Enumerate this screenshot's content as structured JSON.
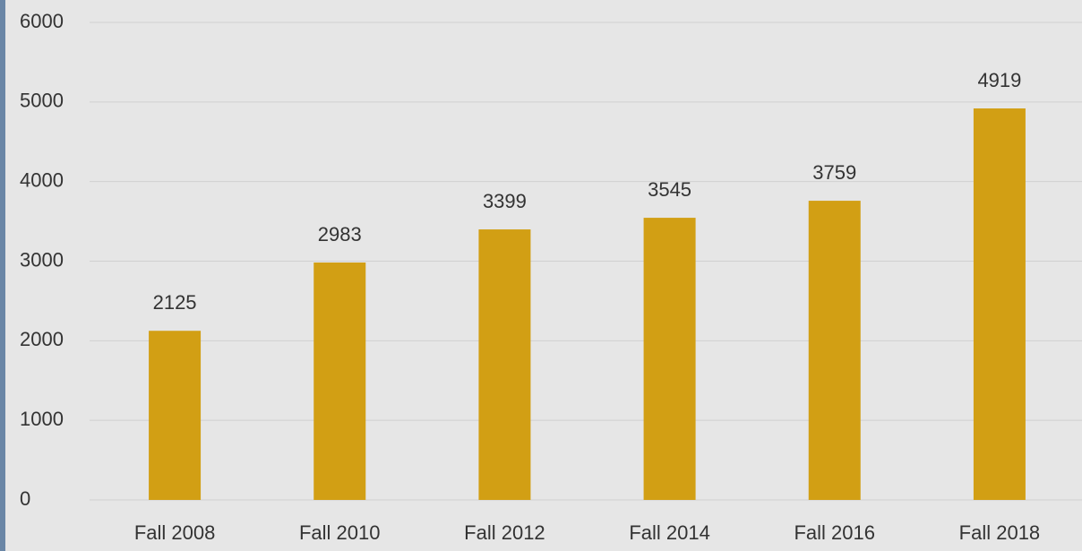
{
  "chart_data": {
    "type": "bar",
    "categories": [
      "Fall 2008",
      "Fall 2010",
      "Fall 2012",
      "Fall 2014",
      "Fall 2016",
      "Fall 2018"
    ],
    "values": [
      2125,
      2983,
      3399,
      3545,
      3759,
      4919
    ],
    "color": "#d29f14",
    "ylim": [
      0,
      6000
    ],
    "yticks": [
      0,
      1000,
      2000,
      3000,
      4000,
      5000,
      6000
    ],
    "grid": true
  }
}
